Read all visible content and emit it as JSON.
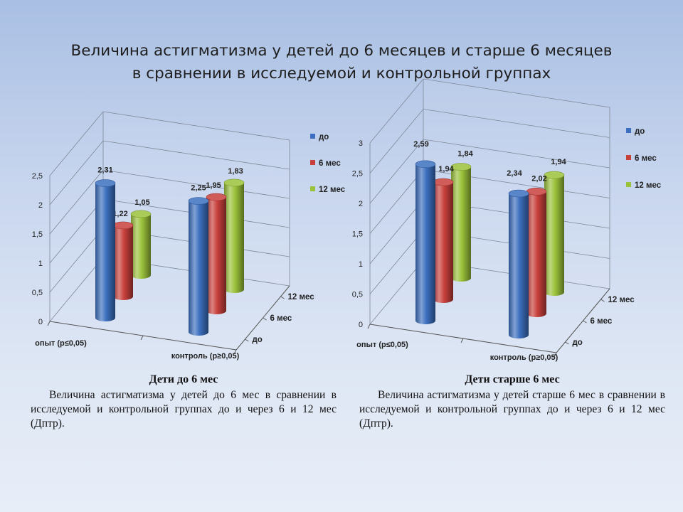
{
  "title": {
    "line1": "Величина астигматизма у детей до 6 месяцев  и старше 6 месяцев",
    "line2": "в сравнении в исследуемой и контрольной группах"
  },
  "colors": {
    "до": "#3c6fbf",
    "6 мес": "#c8403c",
    "12 мес": "#9bc23b"
  },
  "chart_data": [
    {
      "type": "bar",
      "subtype": "3d-cylinder",
      "categories": [
        "опыт (р≤0,05)",
        "контроль (р≥0,05)"
      ],
      "depth_labels": [
        "до",
        "6 мес",
        "12 мес"
      ],
      "series": [
        {
          "name": "до",
          "values": [
            2.31,
            2.25
          ]
        },
        {
          "name": "6 мес",
          "values": [
            1.22,
            1.95
          ]
        },
        {
          "name": "12 мес",
          "values": [
            1.05,
            1.83
          ]
        }
      ],
      "data_labels": [
        [
          "2,31",
          "2,25"
        ],
        [
          "1,22",
          "1,95"
        ],
        [
          "1,05",
          "1,83"
        ]
      ],
      "ylim": [
        0,
        2.5
      ],
      "yticks": [
        0,
        0.5,
        1,
        1.5,
        2,
        2.5
      ],
      "ytick_labels": [
        "0",
        "0,5",
        "1",
        "1,5",
        "2",
        "2,5"
      ],
      "legend": [
        "до",
        "6 мес",
        "12 мес"
      ],
      "legend_position": "right",
      "grid": true
    },
    {
      "type": "bar",
      "subtype": "3d-cylinder",
      "categories": [
        "опыт (р≤0,05)",
        "контроль (р≥0,05)"
      ],
      "depth_labels": [
        "до",
        "6 мес",
        "12 мес"
      ],
      "series": [
        {
          "name": "до",
          "values": [
            2.59,
            2.34
          ]
        },
        {
          "name": "6 мес",
          "values": [
            1.94,
            2.02
          ]
        },
        {
          "name": "12 мес",
          "values": [
            1.84,
            1.94
          ]
        }
      ],
      "data_labels": [
        [
          "2,59",
          "2,34"
        ],
        [
          "1,94",
          "2,02"
        ],
        [
          "1,84",
          "1,94"
        ]
      ],
      "ylim": [
        0,
        3
      ],
      "yticks": [
        0,
        0.5,
        1,
        1.5,
        2,
        2.5,
        3
      ],
      "ytick_labels": [
        "0",
        "0,5",
        "1",
        "1,5",
        "2",
        "2,5",
        "3"
      ],
      "legend": [
        "до",
        "6 мес",
        "12 мес"
      ],
      "legend_position": "right",
      "grid": true
    }
  ],
  "captions": [
    {
      "heading": "Дети до 6 мес",
      "body": "Величина астигматизма у детей до 6 мес в сравнении в исследуемой и контрольной группах до и через 6 и 12 мес (Дптр)."
    },
    {
      "heading": "Дети старше 6 мес",
      "body": "Величина астигматизма у детей старше 6 мес в сравнении в исследуемой и контрольной группах до и через 6 и 12 мес (Дптр)."
    }
  ]
}
